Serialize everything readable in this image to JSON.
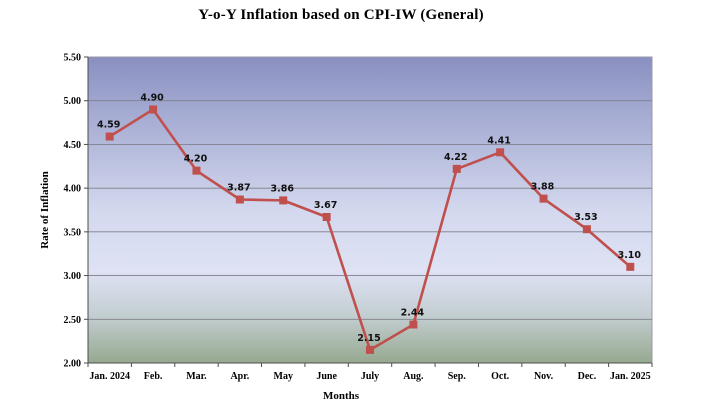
{
  "figure": {
    "background": "#ffffff"
  },
  "chart_data": {
    "type": "line",
    "title": "Y-o-Y Inflation based on CPI-IW (General)",
    "xlabel": "Months",
    "ylabel": "Rate of Inflation",
    "categories": [
      "Jan. 2024",
      "Feb.",
      "Mar.",
      "Apr.",
      "May",
      "June",
      "July",
      "Aug.",
      "Sep.",
      "Oct.",
      "Nov.",
      "Dec.",
      "Jan. 2025"
    ],
    "series": [
      {
        "name": "Rate of Inflation",
        "values": [
          4.59,
          4.9,
          4.2,
          3.87,
          3.86,
          3.67,
          2.15,
          2.44,
          4.22,
          4.41,
          3.88,
          3.53,
          3.1
        ],
        "color": "#C0504D",
        "marker": "square"
      }
    ],
    "ylim": [
      2.0,
      5.5
    ],
    "ytick_step": 0.5,
    "ytick_decimals": 2,
    "data_label_decimals": 2,
    "grid": true,
    "legend": "none",
    "colors": {
      "gridline": "#7F7F8C",
      "axis": "#4D4D4D",
      "plot_border": "#9999A6",
      "data_label": "#111111",
      "tick_label": "#000000"
    },
    "plot_gradient": [
      {
        "offset": "0%",
        "color": "#8990C1"
      },
      {
        "offset": "50%",
        "color": "#D3D8EE"
      },
      {
        "offset": "70%",
        "color": "#DEE2F4"
      },
      {
        "offset": "85%",
        "color": "#C2CDD0"
      },
      {
        "offset": "100%",
        "color": "#96A88F"
      }
    ]
  }
}
